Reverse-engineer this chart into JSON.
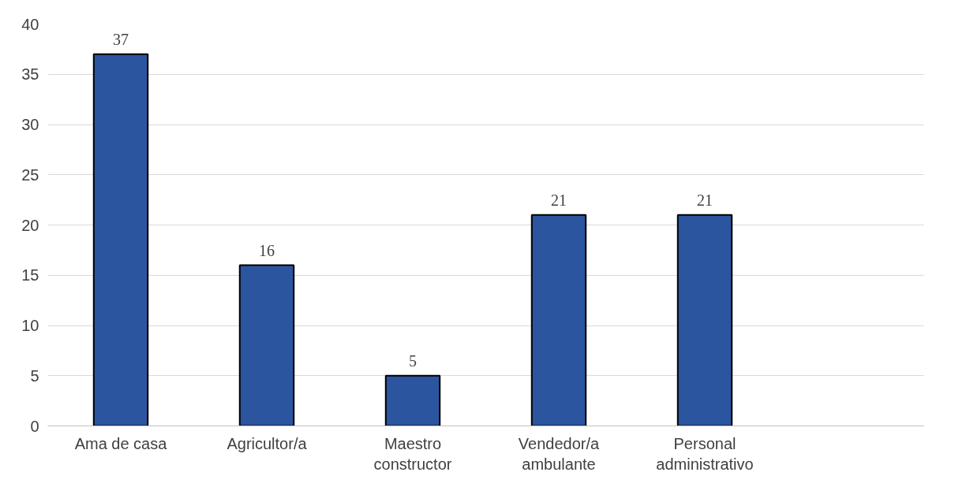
{
  "chart_data": {
    "type": "bar",
    "categories": [
      "Ama de casa",
      "Agricultor/a",
      "Maestro\nconstructor",
      "Vendedor/a\nambulante",
      "Personal\nadministrativo",
      null
    ],
    "values": [
      37,
      16,
      5,
      21,
      21,
      null
    ],
    "color": "#2c559f",
    "ylim": [
      0,
      40
    ],
    "yticks": [
      0,
      5,
      10,
      15,
      20,
      25,
      30,
      35,
      40
    ],
    "grid": "y",
    "data_labels": true
  }
}
